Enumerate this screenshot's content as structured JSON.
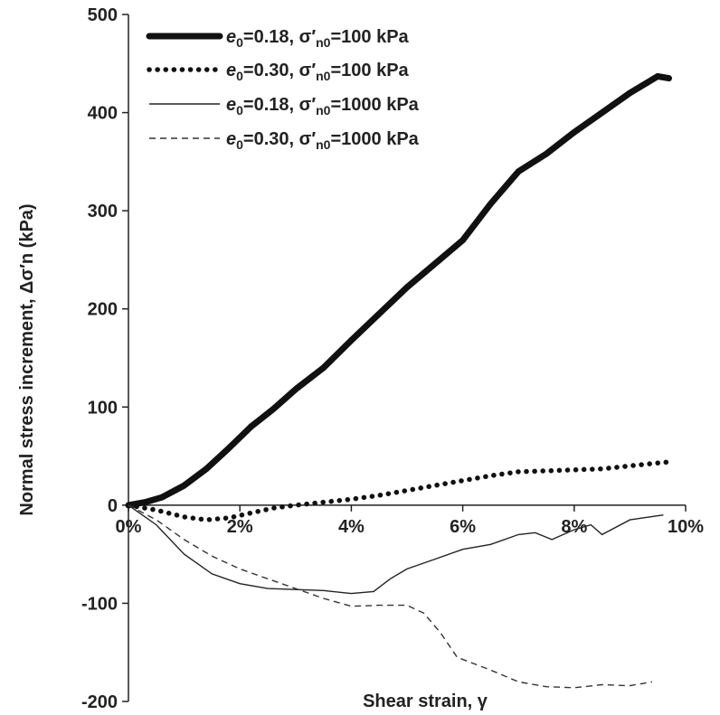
{
  "chart_data": {
    "type": "line",
    "xlabel": "Shear strain, γ",
    "ylabel": "Normal stress increment, Δσ′n (kPa)",
    "xlim": [
      0,
      10
    ],
    "ylim": [
      -200,
      500
    ],
    "x_ticks": [
      0,
      2,
      4,
      6,
      8,
      10
    ],
    "x_tick_labels": [
      "0%",
      "2%",
      "4%",
      "6%",
      "8%",
      "10%"
    ],
    "y_ticks": [
      -200,
      -100,
      0,
      100,
      200,
      300,
      400,
      500
    ],
    "y_tick_labels": [
      "-200",
      "-100",
      "0",
      "100",
      "200",
      "300",
      "400",
      "500"
    ],
    "grid": false,
    "legend_position": "top-center",
    "series": [
      {
        "name": "e0=0.18, σ′n0=100 kPa",
        "name_parts": [
          "e",
          "0",
          "=0.18, σ′",
          "n0",
          "=100 kPa"
        ],
        "style": "thick",
        "color": "#111111",
        "x": [
          0,
          0.3,
          0.6,
          1.0,
          1.4,
          1.8,
          2.2,
          2.6,
          3.0,
          3.5,
          4.0,
          4.5,
          5.0,
          5.5,
          6.0,
          6.5,
          7.0,
          7.5,
          8.0,
          8.5,
          9.0,
          9.5,
          9.7
        ],
        "y": [
          0,
          3,
          8,
          20,
          37,
          58,
          80,
          98,
          118,
          140,
          168,
          195,
          222,
          246,
          270,
          307,
          340,
          358,
          380,
          400,
          420,
          437,
          435
        ]
      },
      {
        "name": "e0=0.30, σ′n0=100 kPa",
        "name_parts": [
          "e",
          "0",
          "=0.30, σ′",
          "n0",
          "=100 kPa"
        ],
        "style": "dotted",
        "color": "#111111",
        "x": [
          0,
          0.5,
          1.0,
          1.4,
          1.8,
          2.2,
          2.6,
          3.0,
          3.5,
          4.0,
          4.5,
          5.0,
          5.5,
          6.0,
          6.5,
          7.0,
          7.5,
          8.0,
          8.5,
          9.0,
          9.5,
          9.7
        ],
        "y": [
          0,
          -5,
          -12,
          -15,
          -13,
          -8,
          -3,
          0,
          3,
          6,
          10,
          15,
          20,
          25,
          30,
          34,
          35,
          36,
          37,
          40,
          43,
          44
        ]
      },
      {
        "name": "e0=0.18, σ′n0=1000 kPa",
        "name_parts": [
          "e",
          "0",
          "=0.18, σ′",
          "n0",
          "=1000 kPa"
        ],
        "style": "thin",
        "color": "#222222",
        "x": [
          0,
          0.5,
          1.0,
          1.5,
          2.0,
          2.5,
          3.0,
          3.5,
          4.0,
          4.4,
          4.7,
          5.0,
          5.5,
          6.0,
          6.5,
          7.0,
          7.3,
          7.6,
          8.0,
          8.3,
          8.5,
          9.0,
          9.6
        ],
        "y": [
          0,
          -20,
          -50,
          -70,
          -80,
          -85,
          -86,
          -87,
          -90,
          -88,
          -75,
          -65,
          -55,
          -45,
          -40,
          -30,
          -28,
          -35,
          -25,
          -20,
          -30,
          -15,
          -10
        ]
      },
      {
        "name": "e0=0.30, σ′n0=1000 kPa",
        "name_parts": [
          "e",
          "0",
          "=0.30, σ′",
          "n0",
          "=1000 kPa"
        ],
        "style": "dashed",
        "color": "#333333",
        "x": [
          0,
          0.5,
          1.0,
          1.5,
          2.0,
          2.5,
          3.0,
          3.5,
          4.0,
          4.5,
          5.0,
          5.3,
          5.6,
          5.9,
          6.5,
          7.0,
          7.5,
          8.0,
          8.5,
          9.0,
          9.4
        ],
        "y": [
          0,
          -15,
          -35,
          -52,
          -65,
          -75,
          -85,
          -95,
          -103,
          -102,
          -102,
          -110,
          -130,
          -155,
          -168,
          -180,
          -185,
          -186,
          -183,
          -184,
          -180
        ]
      }
    ]
  }
}
